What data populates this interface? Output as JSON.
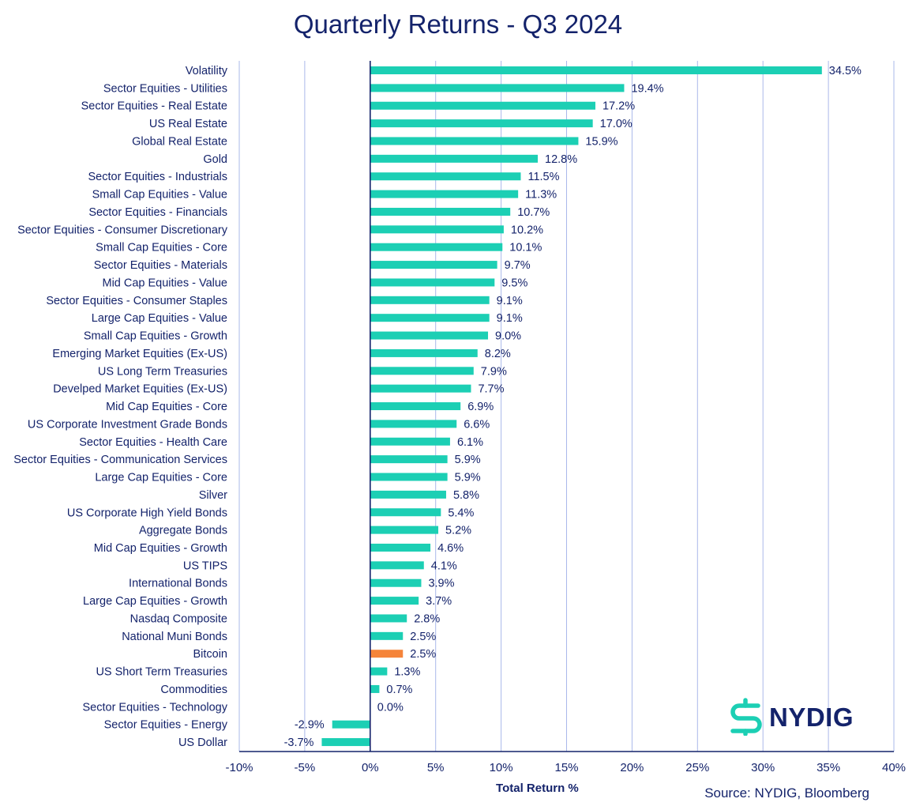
{
  "chart_data": {
    "type": "bar",
    "orientation": "horizontal",
    "title": "Quarterly Returns - Q3 2024",
    "xlabel": "Total Return %",
    "xlim": [
      -10,
      40
    ],
    "xticks": [
      "-10%",
      "-5%",
      "0%",
      "5%",
      "10%",
      "15%",
      "20%",
      "25%",
      "30%",
      "35%",
      "40%"
    ],
    "grid": "vertical",
    "bar_color": "#1ccfb4",
    "highlight_color": "#f5843a",
    "axis_color": "#14236b",
    "grid_color": "#aab8ea",
    "categories": [
      "Volatility",
      "Sector Equities - Utilities",
      "Sector Equities - Real Estate",
      "US Real Estate",
      "Global Real Estate",
      "Gold",
      "Sector Equities - Industrials",
      "Small Cap Equities - Value",
      "Sector Equities - Financials",
      "Sector Equities - Consumer Discretionary",
      "Small Cap Equities - Core",
      "Sector Equities - Materials",
      "Mid Cap Equities - Value",
      "Sector Equities - Consumer Staples",
      "Large Cap Equities - Value",
      "Small Cap Equities - Growth",
      "Emerging Market Equities (Ex-US)",
      "US Long Term Treasuries",
      "Develped Market Equities (Ex-US)",
      "Mid Cap Equities - Core",
      "US Corporate Investment Grade Bonds",
      "Sector Equities - Health Care",
      "Sector Equities - Communication Services",
      "Large Cap Equities - Core",
      "Silver",
      "US Corporate High Yield Bonds",
      "Aggregate Bonds",
      "Mid Cap Equities - Growth",
      "US TIPS",
      "International Bonds",
      "Large Cap Equities - Growth",
      "Nasdaq Composite",
      "National Muni Bonds",
      "Bitcoin",
      "US Short Term Treasuries",
      "Commodities",
      "Sector Equities - Technology",
      "Sector Equities - Energy",
      "US Dollar"
    ],
    "values": [
      34.5,
      19.4,
      17.2,
      17.0,
      15.9,
      12.8,
      11.5,
      11.3,
      10.7,
      10.2,
      10.1,
      9.7,
      9.5,
      9.1,
      9.1,
      9.0,
      8.2,
      7.9,
      7.7,
      6.9,
      6.6,
      6.1,
      5.9,
      5.9,
      5.8,
      5.4,
      5.2,
      4.6,
      4.1,
      3.9,
      3.7,
      2.8,
      2.5,
      2.5,
      1.3,
      0.7,
      0.0,
      -2.9,
      -3.7
    ],
    "value_labels": [
      "34.5%",
      "19.4%",
      "17.2%",
      "17.0%",
      "15.9%",
      "12.8%",
      "11.5%",
      "11.3%",
      "10.7%",
      "10.2%",
      "10.1%",
      "9.7%",
      "9.5%",
      "9.1%",
      "9.1%",
      "9.0%",
      "8.2%",
      "7.9%",
      "7.7%",
      "6.9%",
      "6.6%",
      "6.1%",
      "5.9%",
      "5.9%",
      "5.8%",
      "5.4%",
      "5.2%",
      "4.6%",
      "4.1%",
      "3.9%",
      "3.7%",
      "2.8%",
      "2.5%",
      "2.5%",
      "1.3%",
      "0.7%",
      "0.0%",
      "-2.9%",
      "-3.7%"
    ],
    "highlight": "Bitcoin"
  },
  "source": "Source: NYDIG, Bloomberg",
  "logo": {
    "text": "NYDIG",
    "icon": "nydig-dollar-logo-icon"
  }
}
